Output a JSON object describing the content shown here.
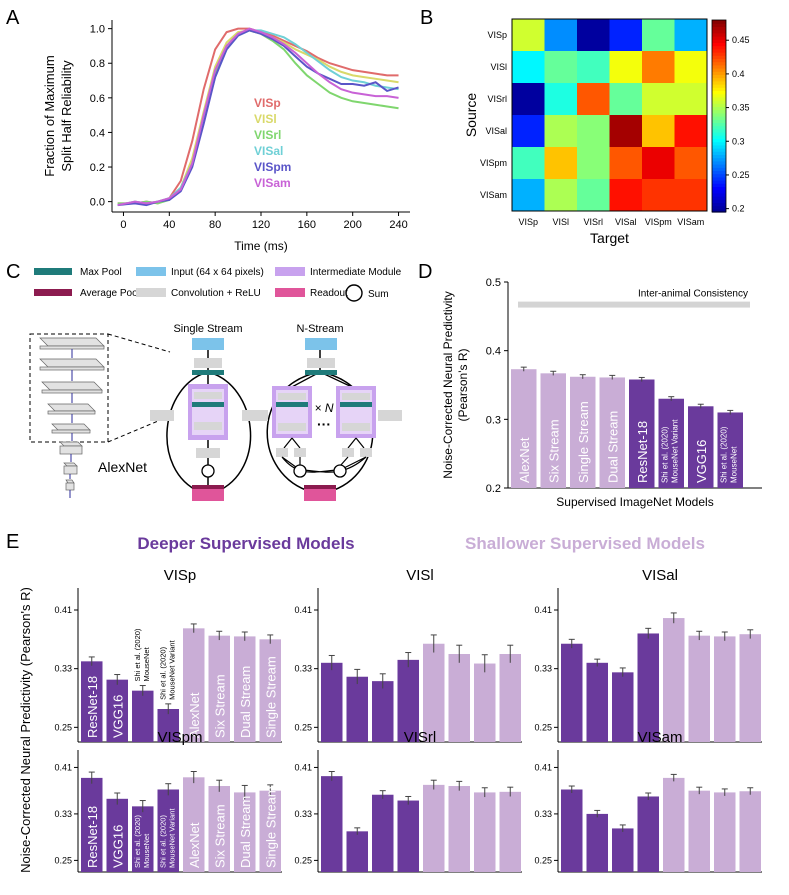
{
  "panel_labels": {
    "a": "A",
    "b": "B",
    "c": "C",
    "d": "D",
    "e": "E"
  },
  "colors": {
    "deep": "#6a3a9c",
    "shallow": "#c9add6",
    "maxpool": "#1f7b7a",
    "avgpool": "#8c1b4f",
    "input": "#7cc3ea",
    "conv": "#d6d6d6",
    "intermediate": "#c8a2ee",
    "readout": "#e0559a",
    "consistency": "#d4d4d4"
  },
  "panel_c": {
    "legend": {
      "max_pool": "Max Pool",
      "avg_pool": "Average Pool",
      "input": "Input (64 x 64 pixels)",
      "conv": "Convolution + ReLU",
      "intermediate": "Intermediate Module",
      "readout": "Readout",
      "sum": "Sum"
    },
    "single_stream_title": "Single Stream",
    "n_stream_title": "N-Stream",
    "times_n": "× N",
    "ellipsis": "···",
    "alexnet_label": "AlexNet"
  },
  "chart_data": [
    {
      "id": "A",
      "type": "line",
      "xlabel": "Time (ms)",
      "ylabel": [
        "Fraction of Maximum",
        "Split Half Reliability"
      ],
      "xlim": [
        -10,
        250
      ],
      "ylim": [
        -0.06,
        1.05
      ],
      "xticks": [
        "0",
        "40",
        "80",
        "120",
        "160",
        "200",
        "240"
      ],
      "yticks": [
        "0.0",
        "0.2",
        "0.4",
        "0.6",
        "0.8",
        "1.0"
      ],
      "x": [
        -5,
        10,
        20,
        30,
        40,
        50,
        60,
        70,
        80,
        90,
        100,
        110,
        120,
        130,
        140,
        150,
        160,
        170,
        180,
        190,
        200,
        210,
        220,
        230,
        240
      ],
      "series": [
        {
          "name": "VISp",
          "color": "#e06b6b",
          "values": [
            -0.01,
            -0.01,
            0.0,
            -0.01,
            0.02,
            0.12,
            0.35,
            0.65,
            0.88,
            0.98,
            1.0,
            1.0,
            0.98,
            0.96,
            0.93,
            0.9,
            0.87,
            0.83,
            0.8,
            0.78,
            0.76,
            0.75,
            0.74,
            0.73,
            0.73
          ]
        },
        {
          "name": "VISl",
          "color": "#d9d96a",
          "values": [
            -0.02,
            0.0,
            -0.01,
            0.0,
            0.02,
            0.08,
            0.25,
            0.52,
            0.78,
            0.92,
            0.98,
            0.99,
            0.97,
            0.95,
            0.92,
            0.88,
            0.85,
            0.82,
            0.78,
            0.75,
            0.73,
            0.72,
            0.71,
            0.7,
            0.69
          ]
        },
        {
          "name": "VISrl",
          "color": "#7fd66e",
          "values": [
            -0.01,
            -0.01,
            0.0,
            -0.01,
            0.01,
            0.08,
            0.22,
            0.48,
            0.74,
            0.9,
            0.97,
            0.99,
            0.97,
            0.93,
            0.88,
            0.8,
            0.73,
            0.68,
            0.63,
            0.6,
            0.58,
            0.57,
            0.56,
            0.55,
            0.54
          ]
        },
        {
          "name": "VISal",
          "color": "#6fd0d6",
          "values": [
            -0.02,
            0.0,
            -0.01,
            0.0,
            0.02,
            0.08,
            0.22,
            0.48,
            0.72,
            0.88,
            0.96,
            0.99,
            0.99,
            0.97,
            0.95,
            0.91,
            0.86,
            0.81,
            0.76,
            0.72,
            0.7,
            0.69,
            0.67,
            0.66,
            0.65
          ]
        },
        {
          "name": "VISpm",
          "color": "#5a55c8",
          "values": [
            -0.02,
            -0.01,
            -0.02,
            0.0,
            0.01,
            0.06,
            0.2,
            0.45,
            0.72,
            0.88,
            0.96,
            0.99,
            0.97,
            0.94,
            0.9,
            0.84,
            0.78,
            0.74,
            0.71,
            0.68,
            0.68,
            0.67,
            0.69,
            0.64,
            0.66
          ]
        },
        {
          "name": "VISam",
          "color": "#c862d6",
          "values": [
            -0.02,
            0.0,
            -0.01,
            0.0,
            0.02,
            0.07,
            0.22,
            0.5,
            0.76,
            0.9,
            0.97,
            1.0,
            0.98,
            0.95,
            0.91,
            0.86,
            0.8,
            0.74,
            0.69,
            0.65,
            0.63,
            0.62,
            0.61,
            0.61,
            0.6
          ]
        }
      ]
    },
    {
      "id": "B",
      "type": "heatmap",
      "xlabel": "Target",
      "ylabel": "Source",
      "rows": [
        "VISp",
        "VISl",
        "VISrl",
        "VISal",
        "VISpm",
        "VISam"
      ],
      "cols": [
        "VISp",
        "VISl",
        "VISrl",
        "VISal",
        "VISpm",
        "VISam"
      ],
      "values": [
        [
          0.36,
          0.27,
          0.2,
          0.24,
          0.33,
          0.28
        ],
        [
          0.3,
          0.33,
          0.32,
          0.37,
          0.41,
          0.37
        ],
        [
          0.2,
          0.31,
          0.42,
          0.33,
          0.36,
          0.36
        ],
        [
          0.24,
          0.35,
          0.34,
          0.47,
          0.39,
          0.44
        ],
        [
          0.32,
          0.39,
          0.34,
          0.42,
          0.45,
          0.42
        ],
        [
          0.28,
          0.35,
          0.33,
          0.44,
          0.43,
          0.43
        ]
      ],
      "colorbar_range": [
        0.195,
        0.48
      ],
      "colorbar_ticks": [
        "0.2",
        "0.25",
        "0.3",
        "0.35",
        "0.4",
        "0.45"
      ]
    },
    {
      "id": "D",
      "type": "bar",
      "xlabel": "Supervised ImageNet Models",
      "ylabel": [
        "Noise-Corrected Neural Predictivity",
        "(Pearson's R)"
      ],
      "ylim": [
        0.2,
        0.5
      ],
      "yticks": [
        "0.2",
        "0.3",
        "0.4",
        "0.5"
      ],
      "consistency_label": "Inter-animal Consistency",
      "consistency_value": 0.47,
      "categories": [
        "AlexNet",
        "Six Stream",
        "Single Stream",
        "Dual Stream",
        "ResNet-18",
        "Shi et al. (2020) MouseNet Variant",
        "VGG16",
        "Shi et al. (2020) MouseNet"
      ],
      "bar_labels": [
        [
          "AlexNet"
        ],
        [
          "Six Stream"
        ],
        [
          "Single Stream"
        ],
        [
          "Dual Stream"
        ],
        [
          "ResNet-18"
        ],
        [
          "Shi et al. (2020)",
          "MouseNet Variant"
        ],
        [
          "VGG16"
        ],
        [
          "Shi et al. (2020)",
          "MouseNet"
        ]
      ],
      "groups": [
        "shallow",
        "shallow",
        "shallow",
        "shallow",
        "deep",
        "deep",
        "deep",
        "deep"
      ],
      "values": [
        0.373,
        0.367,
        0.362,
        0.361,
        0.358,
        0.33,
        0.319,
        0.31
      ],
      "errors": [
        0.003,
        0.003,
        0.003,
        0.003,
        0.003,
        0.003,
        0.003,
        0.003
      ]
    },
    {
      "id": "E",
      "type": "bar",
      "deeper_title": "Deeper Supervised Models",
      "shallower_title": "Shallower Supervised Models",
      "ylabel": "Noise-Corrected Neural Predictivity (Pearson's R)",
      "ylim": [
        0.23,
        0.44
      ],
      "yticks": [
        "0.25",
        "0.33",
        "0.41"
      ],
      "categories": [
        "ResNet-18",
        "VGG16",
        "Shi et al. (2020) MouseNet",
        "Shi et al. (2020) MouseNet Variant",
        "AlexNet",
        "Six Stream",
        "Dual Stream",
        "Single Stream"
      ],
      "groups": [
        "deep",
        "deep",
        "deep",
        "deep",
        "shallow",
        "shallow",
        "shallow",
        "shallow"
      ],
      "bar_labels_top": [
        [
          "ResNet-18"
        ],
        [
          "VGG16"
        ],
        [
          "Shi et al. (2020)",
          "MouseNet"
        ],
        [
          "Shi et al. (2020)",
          "MouseNet Variant"
        ],
        [
          "AlexNet"
        ],
        [
          "Six Stream"
        ],
        [
          "Dual Stream"
        ],
        [
          "Single Stream"
        ]
      ],
      "bar_labels_bottom": [
        [
          "ResNet-18"
        ],
        [
          "VGG16"
        ],
        [
          "Shi et al. (2020)",
          "MouseNet"
        ],
        [
          "Shi et al. (2020)",
          "MouseNet Variant"
        ],
        [
          "AlexNet"
        ],
        [
          "Six Stream"
        ],
        [
          "Dual Stream"
        ],
        [
          "Single Stream"
        ]
      ],
      "subplots": [
        {
          "title": "VISp",
          "values": [
            0.34,
            0.315,
            0.3,
            0.275,
            0.385,
            0.375,
            0.374,
            0.37
          ],
          "errors": [
            0.006,
            0.007,
            0.007,
            0.007,
            0.006,
            0.006,
            0.006,
            0.006
          ]
        },
        {
          "title": "VISl",
          "values": [
            0.338,
            0.319,
            0.313,
            0.342,
            0.364,
            0.35,
            0.337,
            0.35
          ],
          "errors": [
            0.01,
            0.01,
            0.01,
            0.01,
            0.012,
            0.012,
            0.012,
            0.012
          ]
        },
        {
          "title": "VISal",
          "values": [
            0.364,
            0.338,
            0.325,
            0.378,
            0.399,
            0.375,
            0.374,
            0.377
          ],
          "errors": [
            0.006,
            0.005,
            0.006,
            0.007,
            0.007,
            0.006,
            0.006,
            0.006
          ]
        },
        {
          "title": "VISpm",
          "values": [
            0.392,
            0.356,
            0.343,
            0.372,
            0.393,
            0.378,
            0.367,
            0.37
          ],
          "errors": [
            0.01,
            0.01,
            0.01,
            0.01,
            0.01,
            0.01,
            0.012,
            0.01
          ]
        },
        {
          "title": "VISrl",
          "values": [
            0.395,
            0.3,
            0.363,
            0.353,
            0.38,
            0.378,
            0.367,
            0.368
          ],
          "errors": [
            0.008,
            0.006,
            0.007,
            0.007,
            0.008,
            0.008,
            0.008,
            0.008
          ]
        },
        {
          "title": "VISam",
          "values": [
            0.372,
            0.33,
            0.305,
            0.36,
            0.392,
            0.37,
            0.367,
            0.369
          ],
          "errors": [
            0.006,
            0.006,
            0.006,
            0.006,
            0.006,
            0.006,
            0.006,
            0.006
          ]
        }
      ]
    }
  ]
}
